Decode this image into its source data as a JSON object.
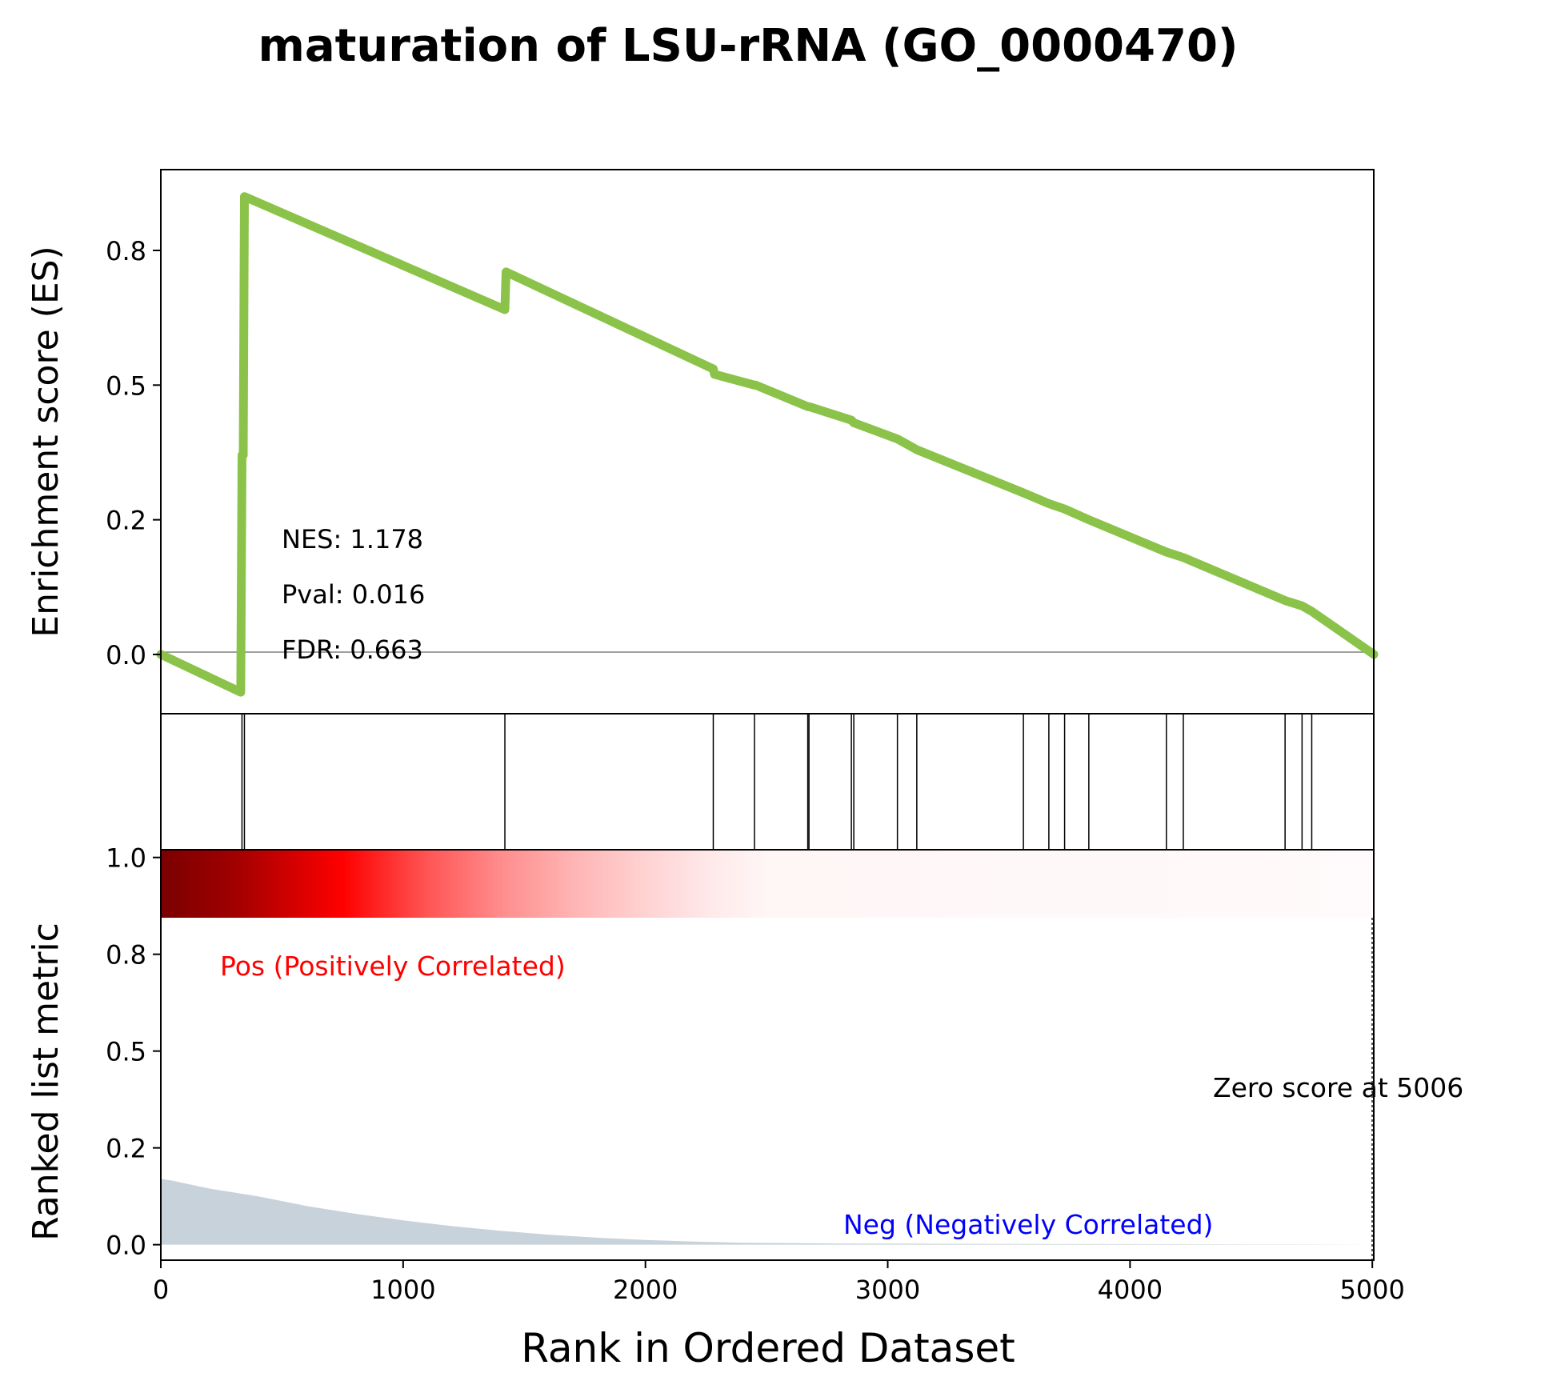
{
  "chart_data": {
    "type": "line",
    "title": "maturation of LSU-rRNA (GO_0000470)",
    "xlabel": "Rank in Ordered Dataset",
    "xlim": [
      0,
      5006
    ],
    "x_ticks": [
      "0",
      "1000",
      "2000",
      "3000",
      "4000",
      "5000"
    ],
    "x_tick_values": [
      0,
      1000,
      2000,
      3000,
      4000,
      5000
    ],
    "es_panel": {
      "ylabel": "Enrichment score (ES)",
      "ylim": [
        -0.11,
        0.9
      ],
      "y_ticks": [
        "0.0",
        "0.2",
        "0.5",
        "0.8"
      ],
      "y_tick_values": [
        0.0,
        0.25,
        0.5,
        0.75
      ],
      "line_color": "#8bc34a",
      "zero_line": true,
      "series": [
        {
          "name": "Enrichment score",
          "x": [
            0,
            330,
            335,
            340,
            345,
            1420,
            1425,
            2280,
            2285,
            2450,
            2455,
            2670,
            2675,
            2850,
            2860,
            3040,
            3120,
            3560,
            3665,
            3730,
            3830,
            4150,
            4220,
            4640,
            4710,
            4750,
            5006
          ],
          "y": [
            0.0,
            -0.07,
            0.37,
            0.37,
            0.85,
            0.64,
            0.71,
            0.53,
            0.52,
            0.5,
            0.5,
            0.46,
            0.46,
            0.435,
            0.43,
            0.4,
            0.38,
            0.3,
            0.28,
            0.27,
            0.25,
            0.19,
            0.18,
            0.1,
            0.09,
            0.08,
            0.0
          ]
        }
      ],
      "annotations": {
        "nes": "NES: 1.178",
        "pval": "Pval: 0.016",
        "fdr": "FDR: 0.663"
      }
    },
    "hits_panel": {
      "hit_positions": [
        335,
        345,
        1420,
        2280,
        2450,
        2670,
        2675,
        2850,
        2860,
        3040,
        3120,
        3560,
        3665,
        3730,
        3830,
        4150,
        4220,
        4640,
        4710,
        4750
      ]
    },
    "metric_panel": {
      "ylabel": "Ranked list metric",
      "ylim": [
        -0.04,
        1.02
      ],
      "y_ticks": [
        "0.0",
        "0.2",
        "0.5",
        "0.8",
        "1.0"
      ],
      "y_tick_values": [
        0.0,
        0.25,
        0.5,
        0.75,
        1.0
      ],
      "fill_color": "#c8d2db",
      "series": [
        {
          "name": "Ranked list metric",
          "x": [
            0,
            50,
            200,
            400,
            600,
            800,
            1000,
            1200,
            1400,
            1600,
            1800,
            2000,
            2200,
            2400,
            2800,
            3500,
            4500,
            5006
          ],
          "y": [
            0.17,
            0.165,
            0.145,
            0.125,
            0.1,
            0.08,
            0.063,
            0.048,
            0.036,
            0.026,
            0.018,
            0.012,
            0.008,
            0.005,
            0.003,
            0.002,
            0.001,
            0.0
          ]
        }
      ],
      "pos_label": "Pos (Positively Correlated)",
      "neg_label": "Neg (Negatively Correlated)",
      "pos_color": "#ff0000",
      "neg_color": "#0000ff",
      "zero_cross_label": "Zero score at 5006",
      "zero_cross_x": 5006
    }
  }
}
